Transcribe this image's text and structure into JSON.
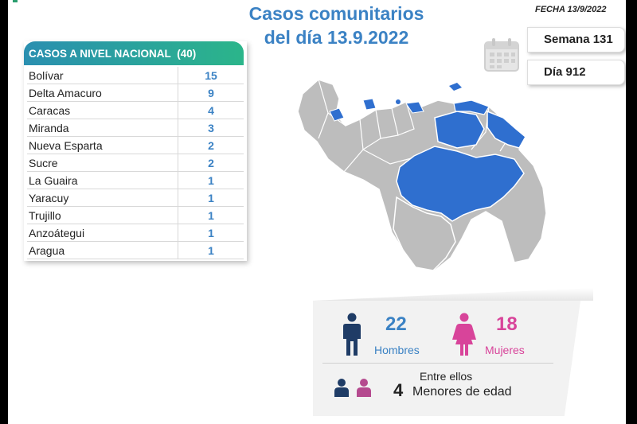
{
  "header": {
    "title_line1": "Casos comunitarios",
    "title_line2": "del día 13.9.2022",
    "fecha": "FECHA 13/9/2022"
  },
  "badges": {
    "semana": "Semana 131",
    "dia": "Día 912"
  },
  "table": {
    "title": "CASOS A NIVEL NACIONAL",
    "total": "(40)",
    "rows": [
      {
        "state": "Bolívar",
        "cases": "15"
      },
      {
        "state": "Delta Amacuro",
        "cases": "9"
      },
      {
        "state": "Caracas",
        "cases": "4"
      },
      {
        "state": "Miranda",
        "cases": "3"
      },
      {
        "state": "Nueva Esparta",
        "cases": "2"
      },
      {
        "state": "Sucre",
        "cases": "2"
      },
      {
        "state": "La Guaira",
        "cases": "1"
      },
      {
        "state": "Yaracuy",
        "cases": "1"
      },
      {
        "state": "Trujillo",
        "cases": "1"
      },
      {
        "state": "Anzoátegui",
        "cases": "1"
      },
      {
        "state": "Aragua",
        "cases": "1"
      }
    ]
  },
  "stats": {
    "men_count": "22",
    "men_label": "Hombres",
    "women_count": "18",
    "women_label": "Mujeres",
    "entre": "Entre ellos",
    "minors_count": "4",
    "minors_label": "Menores de edad"
  },
  "colors": {
    "accent_blue": "#3b82c4",
    "accent_pink": "#d8449a",
    "map_highlight": "#2f6fcf",
    "map_base": "#bdbdbd",
    "header_gradient_start": "#2a8fb0",
    "header_gradient_end": "#2bb58a"
  },
  "icons": {
    "calendar": "calendar-icon",
    "man": "man-icon",
    "woman": "woman-icon",
    "children": "children-icon"
  }
}
